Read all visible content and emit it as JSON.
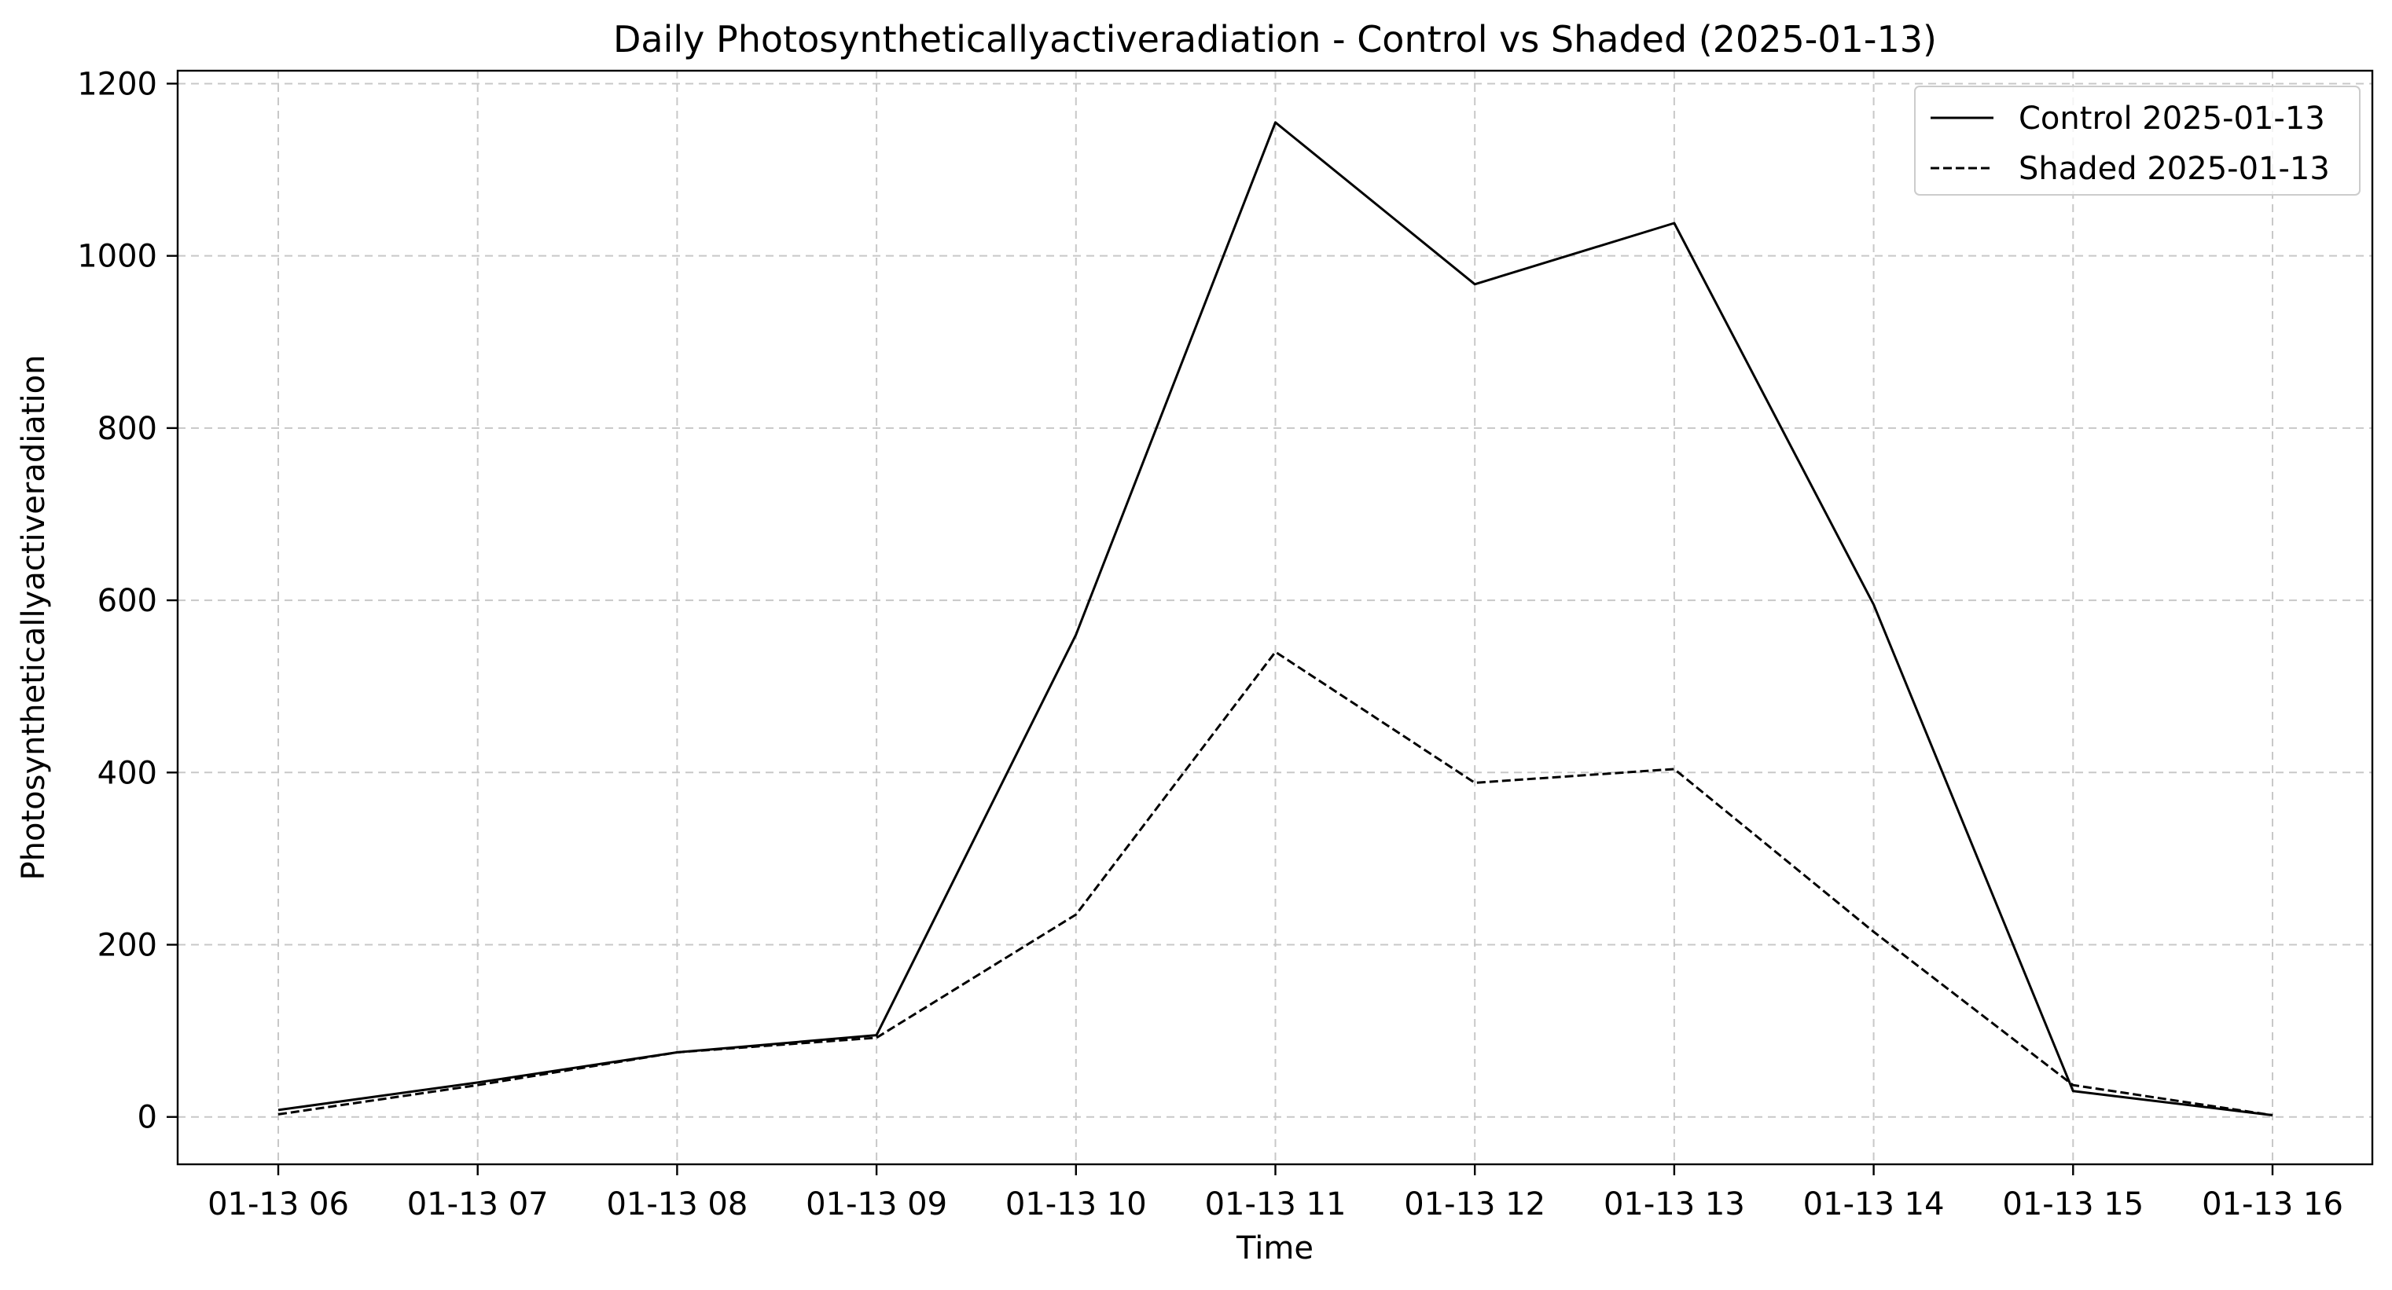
{
  "chart_data": {
    "type": "line",
    "title": "Daily Photosyntheticallyactiveradiation - Control vs Shaded (2025-01-13)",
    "xlabel": "Time",
    "ylabel": "Photosyntheticallyactiveradiation",
    "x": [
      "01-13 06",
      "01-13 07",
      "01-13 08",
      "01-13 09",
      "01-13 10",
      "01-13 11",
      "01-13 12",
      "01-13 13",
      "01-13 14",
      "01-13 15",
      "01-13 16"
    ],
    "ylim": [
      -55,
      1215
    ],
    "yticks": [
      0,
      200,
      400,
      600,
      800,
      1000,
      1200
    ],
    "grid": true,
    "legend_position": "top-right",
    "series": [
      {
        "name": "Control 2025-01-13",
        "style": "solid",
        "color": "#000000",
        "values": [
          8,
          40,
          75,
          95,
          560,
          1155,
          967,
          1038,
          595,
          30,
          2
        ]
      },
      {
        "name": "Shaded 2025-01-13",
        "style": "dashed",
        "color": "#000000",
        "values": [
          3,
          37,
          75,
          92,
          235,
          540,
          388,
          404,
          215,
          37,
          2
        ]
      }
    ]
  }
}
